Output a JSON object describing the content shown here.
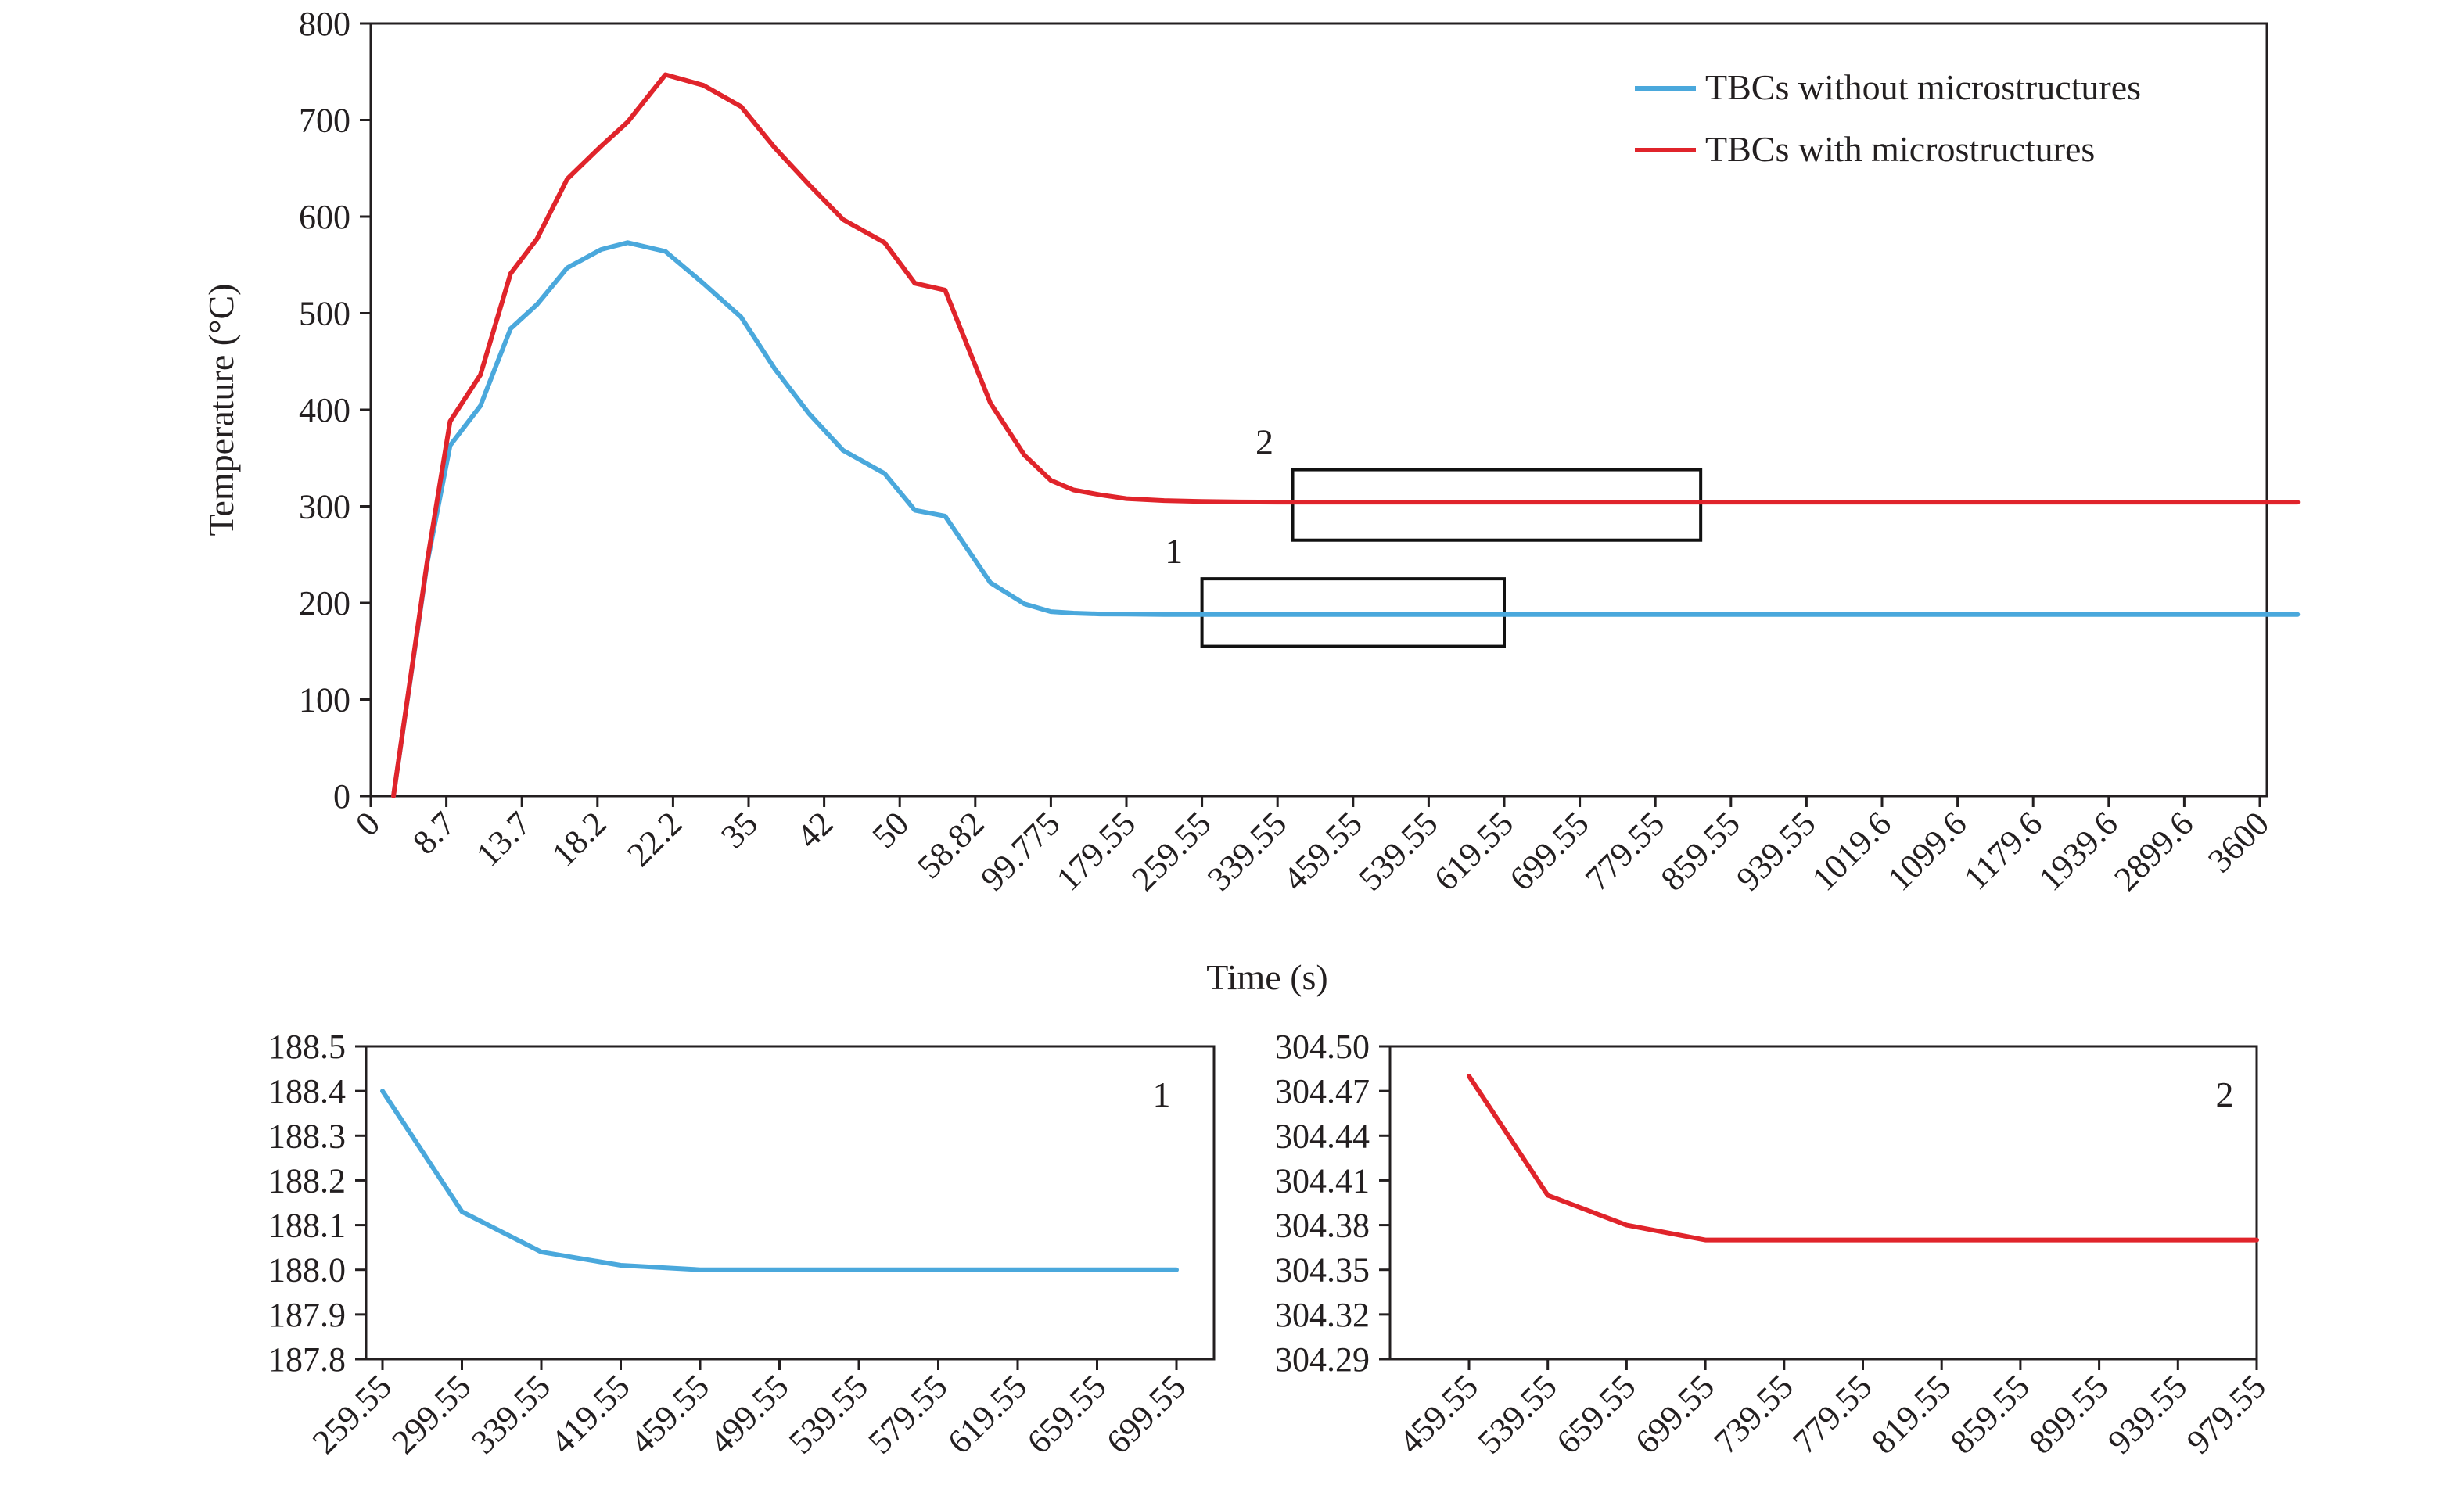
{
  "colors": {
    "without": "#4aa8dc",
    "with": "#e0242b",
    "axis": "#231f20"
  },
  "chart_data": [
    {
      "id": "main",
      "type": "line",
      "xlabel": "Time (s)",
      "ylabel": "Temperature (°C)",
      "ylim": [
        0,
        800
      ],
      "yticks": [
        "0",
        "100",
        "200",
        "300",
        "400",
        "500",
        "600",
        "700",
        "800"
      ],
      "categories": [
        "0",
        "8.7",
        "13.7",
        "18.2",
        "22.2",
        "35",
        "42",
        "50",
        "58.82",
        "99.775",
        "179.55",
        "259.55",
        "339.55",
        "459.55",
        "539.55",
        "619.55",
        "699.55",
        "779.55",
        "859.55",
        "939.55",
        "1019.6",
        "1099.6",
        "1179.6",
        "1939.6",
        "2899.6",
        "3600"
      ],
      "legend": {
        "position": "top-right"
      },
      "series": [
        {
          "name": "TBCs without microstructures",
          "color": "without",
          "x": [
            0.3,
            0.75,
            1.05,
            1.45,
            1.85,
            2.2,
            2.6,
            3.05,
            3.4,
            3.9,
            4.4,
            4.9,
            5.35,
            5.8,
            6.25,
            6.8,
            7.2,
            7.6,
            8.2,
            8.65,
            9.0,
            9.3,
            9.65,
            10.0,
            10.5,
            10.8,
            11.2,
            11.9,
            12.5,
            13.0,
            25.5
          ],
          "y": [
            0,
            243,
            363,
            404,
            484,
            509,
            547,
            566,
            573,
            564,
            531,
            496,
            442,
            396,
            358,
            334,
            296,
            290,
            221,
            199,
            191,
            189.5,
            188.6,
            188.4,
            188.1,
            188.04,
            188.02,
            188,
            188,
            188,
            188
          ]
        },
        {
          "name": "TBCs with microstructures",
          "color": "with",
          "x": [
            0.3,
            0.75,
            1.05,
            1.45,
            1.85,
            2.2,
            2.6,
            3.05,
            3.4,
            3.9,
            4.4,
            4.9,
            5.35,
            5.8,
            6.25,
            6.8,
            7.2,
            7.6,
            8.2,
            8.65,
            9.0,
            9.3,
            9.65,
            10.0,
            10.5,
            11.0,
            11.5,
            12.0,
            25.5
          ],
          "y": [
            0,
            245,
            388,
            436,
            541,
            577,
            639,
            673,
            698,
            747,
            736,
            714,
            671,
            633,
            597,
            573,
            531,
            524,
            407,
            353,
            327,
            317,
            312,
            308,
            306,
            305,
            304.5,
            304.4,
            304.37
          ]
        }
      ],
      "annotations": [
        {
          "label": "1",
          "x_from": 11.0,
          "x_to": 15.0,
          "y_from": 155,
          "y_to": 225
        },
        {
          "label": "2",
          "x_from": 12.2,
          "x_to": 17.6,
          "y_from": 265,
          "y_to": 338
        }
      ]
    },
    {
      "id": "inset1",
      "type": "line",
      "label": "1",
      "ylim": [
        187.8,
        188.5
      ],
      "yticks": [
        "187.8",
        "187.9",
        "188.0",
        "188.1",
        "188.2",
        "188.3",
        "188.4",
        "188.5"
      ],
      "categories": [
        "259.55",
        "299.55",
        "339.55",
        "419.55",
        "459.55",
        "499.55",
        "539.55",
        "579.55",
        "619.55",
        "659.55",
        "699.55"
      ],
      "series": [
        {
          "color": "without",
          "values": [
            188.4,
            188.13,
            188.04,
            188.01,
            188.0,
            188.0,
            188.0,
            188.0,
            188.0,
            188.0,
            188.0
          ]
        }
      ]
    },
    {
      "id": "inset2",
      "type": "line",
      "label": "2",
      "ylim": [
        304.29,
        304.5
      ],
      "yticks": [
        "304.29",
        "304.32",
        "304.35",
        "304.38",
        "304.41",
        "304.44",
        "304.47",
        "304.50"
      ],
      "categories": [
        "459.55",
        "539.55",
        "659.55",
        "699.55",
        "739.55",
        "779.55",
        "819.55",
        "859.55",
        "899.55",
        "939.55",
        "979.55"
      ],
      "series": [
        {
          "color": "with",
          "values": [
            304.48,
            304.4,
            304.38,
            304.37,
            304.37,
            304.37,
            304.37,
            304.37,
            304.37,
            304.37,
            304.37
          ]
        }
      ]
    }
  ]
}
